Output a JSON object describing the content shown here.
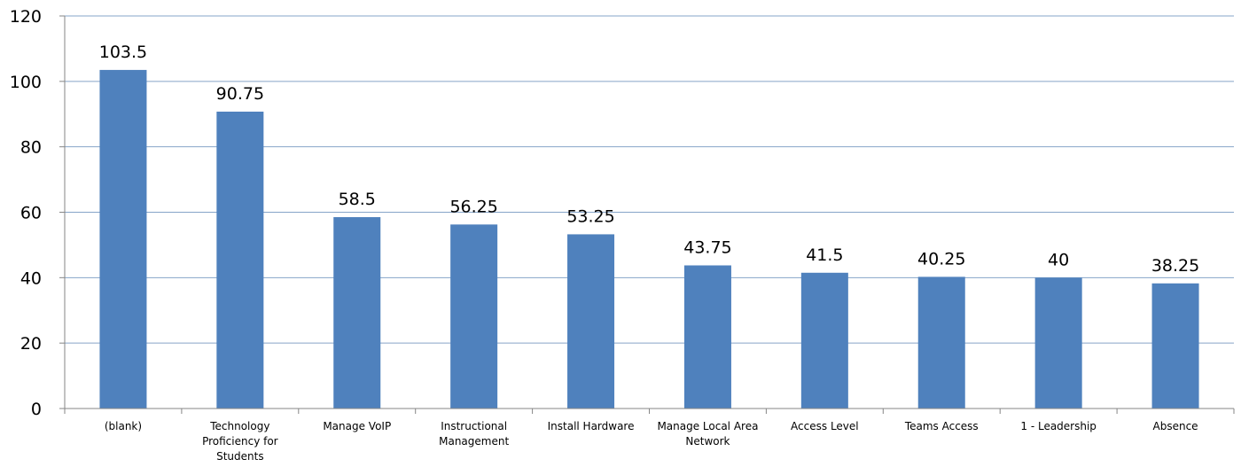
{
  "chart_data": {
    "type": "bar",
    "categories": [
      "(blank)",
      "Technology Proficiency for Students",
      "Manage VoIP",
      "Instructional Management",
      "Install Hardware",
      "Manage Local Area Network",
      "Access Level",
      "Teams Access",
      "1 - Leadership",
      "Absence"
    ],
    "category_lines": [
      [
        "(blank)"
      ],
      [
        "Technology",
        "Proficiency for",
        "Students"
      ],
      [
        "Manage VoIP"
      ],
      [
        "Instructional",
        "Management"
      ],
      [
        "Install Hardware"
      ],
      [
        "Manage Local Area",
        "Network"
      ],
      [
        "Access Level"
      ],
      [
        "Teams Access"
      ],
      [
        "1 - Leadership"
      ],
      [
        "Absence"
      ]
    ],
    "values": [
      103.5,
      90.75,
      58.5,
      56.25,
      53.25,
      43.75,
      41.5,
      40.25,
      40,
      38.25
    ],
    "data_labels": [
      "103.5",
      "90.75",
      "58.5",
      "56.25",
      "53.25",
      "43.75",
      "41.5",
      "40.25",
      "40",
      "38.25"
    ],
    "y_ticks": [
      0,
      20,
      40,
      60,
      80,
      100,
      120
    ],
    "ylim": [
      0,
      120
    ],
    "grid": true,
    "legend": "none",
    "colors": {
      "bar": "#4f81bd",
      "grid": "#86a4c8",
      "axis": "#868686"
    }
  }
}
